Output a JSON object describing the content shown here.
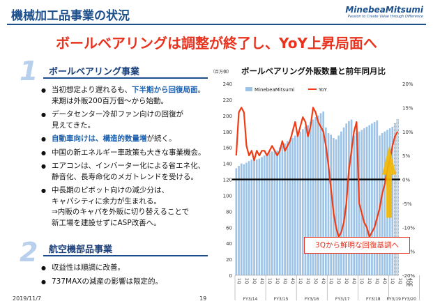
{
  "header": {
    "title": "機械加工品事業の状況",
    "logo": "MinebeaMitsumi",
    "logo_tagline": "Passion to Create Value through Difference"
  },
  "headline": "ボールベアリングは調整が終了し、YoY上昇局面へ",
  "section1": {
    "number": "1",
    "title": "ボールベアリング事業",
    "bullets": [
      {
        "line1_a": "当初想定より遅れるも、",
        "line1_b": "下半期から回復局面",
        "line1_c": "。",
        "line2": "来期は外販200百万個～から始動。"
      },
      {
        "line1": "データセンター冷却ファン向けの回復が",
        "line2": "見えてきた。"
      },
      {
        "line1_a": "自動車向けは、構造的数量増",
        "line1_b": "が続く。"
      },
      {
        "line1": "中国の新エネルギー車政策も大きな事業機会。"
      },
      {
        "line1": "エアコンは、インバーター化による省エネ化、",
        "line2": "静音化、長寿命化のメガトレンドを受ける。"
      },
      {
        "line1": "中長期のピボット向けの減少分は、",
        "line2": "キャパシティに余力が生まれる。",
        "line3": "⇒内販のキャパを外販に切り替えることで",
        "line4": "新工場を建設せずにASP改善へ。"
      }
    ]
  },
  "section2": {
    "number": "2",
    "title": "航空機部品事業",
    "bullets": [
      "収益性は順調に改善。",
      "737MAXの減産の影響は限定的。"
    ]
  },
  "footer": {
    "date": "2019/11/7",
    "page": "19"
  },
  "callout": "3Qから鮮明な回復基調へ",
  "colors": {
    "bar": "#9dc3e6",
    "line": "#f03c14",
    "accent": "#e8321e",
    "navy": "#1b4f8c",
    "arrow": "#f5b800"
  },
  "chart_data": {
    "type": "bar+line",
    "title": "ボールベアリング外販数量と前年同月比",
    "ylabel_left": "（百万個）",
    "ylim_left": [
      0,
      240
    ],
    "yticks_left": [
      "0",
      "20",
      "40",
      "60",
      "80",
      "100",
      "120",
      "140",
      "160",
      "180",
      "200",
      "220",
      "240"
    ],
    "ylim_right": [
      -20,
      20
    ],
    "yticks_right": [
      "-20%",
      "-15%",
      "-10%",
      "-5%",
      "0%",
      "5%",
      "10%",
      "15%",
      "20%"
    ],
    "legend": [
      "MinebeaMitsumi",
      "YoY"
    ],
    "months": [
      "1Q",
      "",
      "",
      "2Q",
      "",
      "",
      "3Q",
      "",
      "",
      "4Q",
      "",
      "",
      "1Q",
      "",
      "",
      "2Q",
      "",
      "",
      "3Q",
      "",
      "",
      "4Q",
      "",
      "",
      "1Q",
      "",
      "",
      "2Q",
      "",
      "",
      "3Q",
      "",
      "",
      "4Q",
      "",
      "",
      "1Q",
      "",
      "",
      "2Q",
      "",
      "",
      "3Q",
      "",
      "",
      "4Q",
      "",
      "",
      "1Q",
      "",
      "",
      "2Q",
      "",
      "",
      "3Q",
      "",
      "",
      "4Q",
      "",
      "",
      "1Q",
      "",
      "",
      "2Q",
      "",
      "",
      "3QE",
      "4QE"
    ],
    "fiscal_years": [
      "FY3/14",
      "FY3/15",
      "FY3/16",
      "FY3/17",
      "FY3/18",
      "FY3/19",
      "FY3/20"
    ],
    "series": [
      {
        "name": "MinebeaMitsumi",
        "kind": "bar",
        "axis": "left",
        "values": [
          134,
          137,
          140,
          139,
          141,
          143,
          145,
          145,
          145,
          146,
          148,
          150,
          153,
          154,
          155,
          156,
          156,
          160,
          162,
          165,
          168,
          170,
          172,
          175,
          178,
          180,
          183,
          186,
          188,
          192,
          195,
          198,
          200,
          203,
          205,
          185,
          178,
          176,
          172,
          170,
          175,
          180,
          185,
          190,
          193,
          195,
          175,
          178,
          180,
          182,
          184,
          186,
          188,
          190,
          192,
          194,
          175,
          178,
          180,
          182,
          184,
          186,
          190,
          195
        ]
      },
      {
        "name": "YoY",
        "kind": "line",
        "axis": "right",
        "values": [
          5,
          14,
          15,
          14,
          7,
          5,
          6,
          4,
          6,
          5,
          6,
          6,
          5,
          6,
          7,
          6,
          5,
          6,
          8,
          6,
          7,
          8,
          10,
          12,
          9,
          11,
          13,
          12,
          9,
          11,
          15,
          14,
          12,
          11,
          10,
          7,
          3,
          -2,
          -7,
          -10,
          -12,
          -11,
          -9,
          -5,
          2,
          6,
          10,
          12,
          -5,
          -7,
          -9,
          -10,
          -12,
          -11,
          -10,
          -8,
          -6,
          -3,
          -1,
          2,
          4,
          7,
          9,
          10
        ]
      }
    ]
  }
}
